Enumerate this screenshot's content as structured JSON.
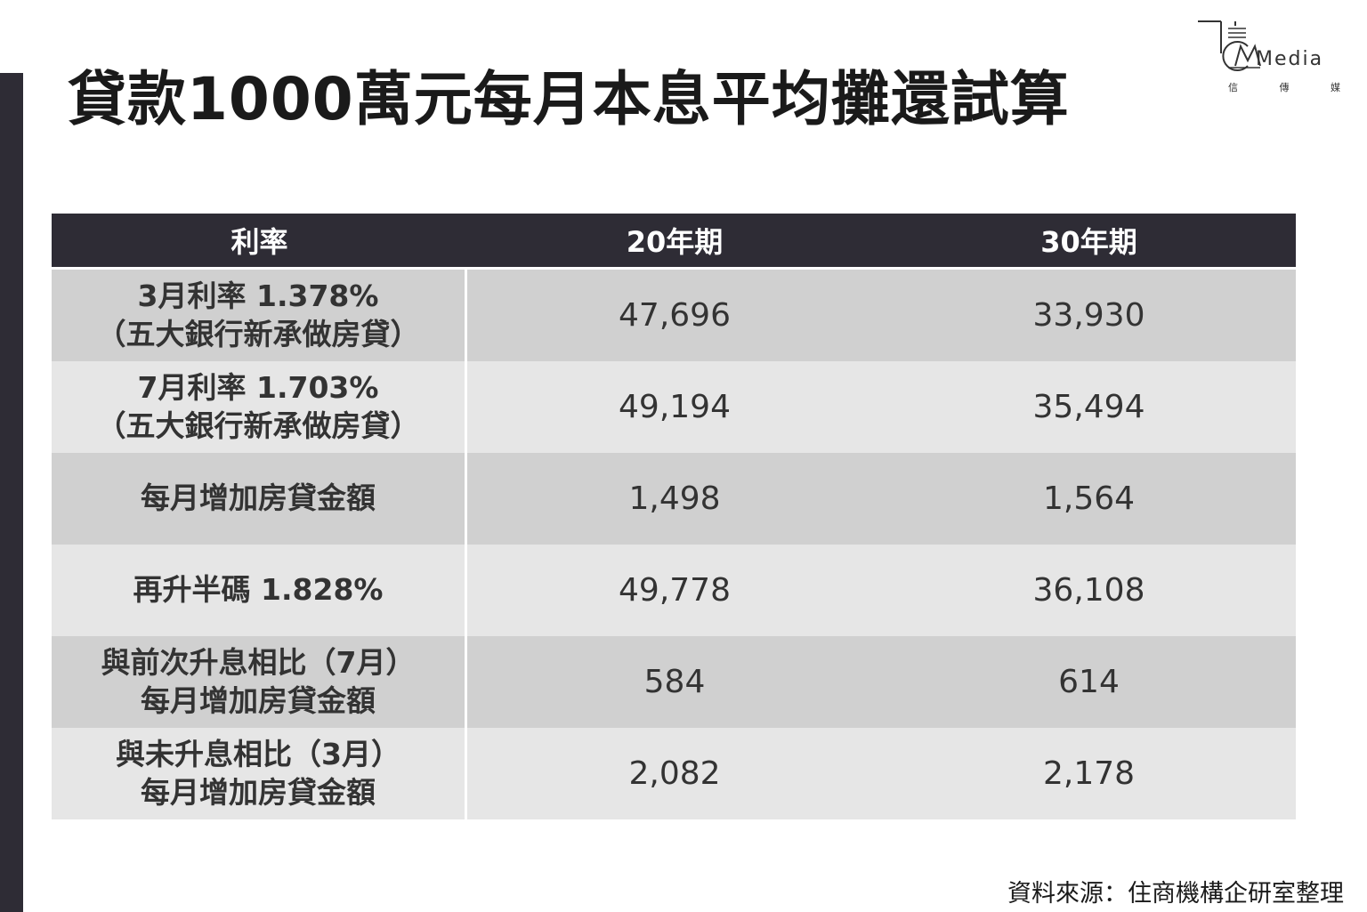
{
  "title": "貸款1000萬元每月本息平均攤還試算",
  "logo": {
    "word": "Media",
    "sub": [
      "信",
      "傳",
      "媒"
    ]
  },
  "table": {
    "headers": [
      "利率",
      "20年期",
      "30年期"
    ],
    "rows": [
      {
        "label": "3月利率 1.378%\n（五大銀行新承做房貸）",
        "y20": "47,696",
        "y30": "33,930"
      },
      {
        "label": "7月利率 1.703%\n（五大銀行新承做房貸）",
        "y20": "49,194",
        "y30": "35,494"
      },
      {
        "label": "每月增加房貸金額",
        "y20": "1,498",
        "y30": "1,564"
      },
      {
        "label": "再升半碼 1.828%",
        "y20": "49,778",
        "y30": "36,108"
      },
      {
        "label": "與前次升息相比（7月）\n每月增加房貸金額",
        "y20": "584",
        "y30": "614"
      },
      {
        "label": "與未升息相比（3月）\n每月增加房貸金額",
        "y20": "2,082",
        "y30": "2,178"
      }
    ]
  },
  "source": "資料來源：住商機構企研室整理"
}
